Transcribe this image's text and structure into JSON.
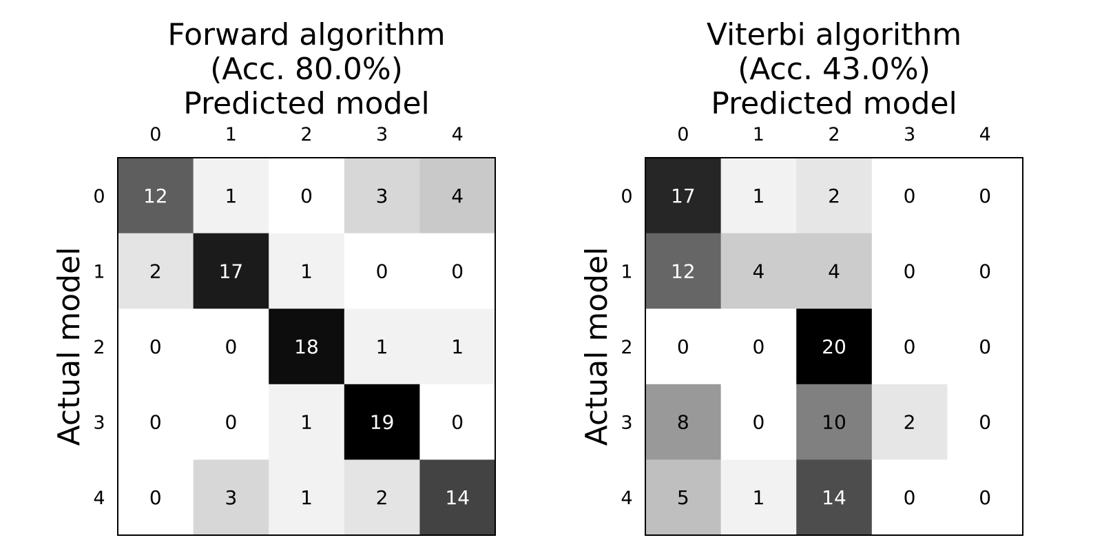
{
  "chart_data": [
    {
      "type": "heatmap",
      "title": [
        "Forward algorithm",
        "(Acc. 80.0%)",
        "Predicted model"
      ],
      "xlabel": "Predicted model",
      "ylabel": "Actual model",
      "x_ticks": [
        "0",
        "1",
        "2",
        "3",
        "4"
      ],
      "y_ticks": [
        "0",
        "1",
        "2",
        "3",
        "4"
      ],
      "colormap": "greys",
      "vmax": 19,
      "values": [
        [
          12,
          1,
          0,
          3,
          4
        ],
        [
          2,
          17,
          1,
          0,
          0
        ],
        [
          0,
          0,
          18,
          1,
          1
        ],
        [
          0,
          0,
          1,
          19,
          0
        ],
        [
          0,
          3,
          1,
          2,
          14
        ]
      ]
    },
    {
      "type": "heatmap",
      "title": [
        "Viterbi algorithm",
        "(Acc. 43.0%)",
        "Predicted model"
      ],
      "xlabel": "Predicted model",
      "ylabel": "Actual model",
      "x_ticks": [
        "0",
        "1",
        "2",
        "3",
        "4"
      ],
      "y_ticks": [
        "0",
        "1",
        "2",
        "3",
        "4"
      ],
      "colormap": "greys",
      "vmax": 20,
      "values": [
        [
          17,
          1,
          2,
          0,
          0
        ],
        [
          12,
          4,
          4,
          0,
          0
        ],
        [
          0,
          0,
          20,
          0,
          0
        ],
        [
          8,
          0,
          10,
          2,
          0
        ],
        [
          5,
          1,
          14,
          0,
          0
        ]
      ]
    }
  ]
}
